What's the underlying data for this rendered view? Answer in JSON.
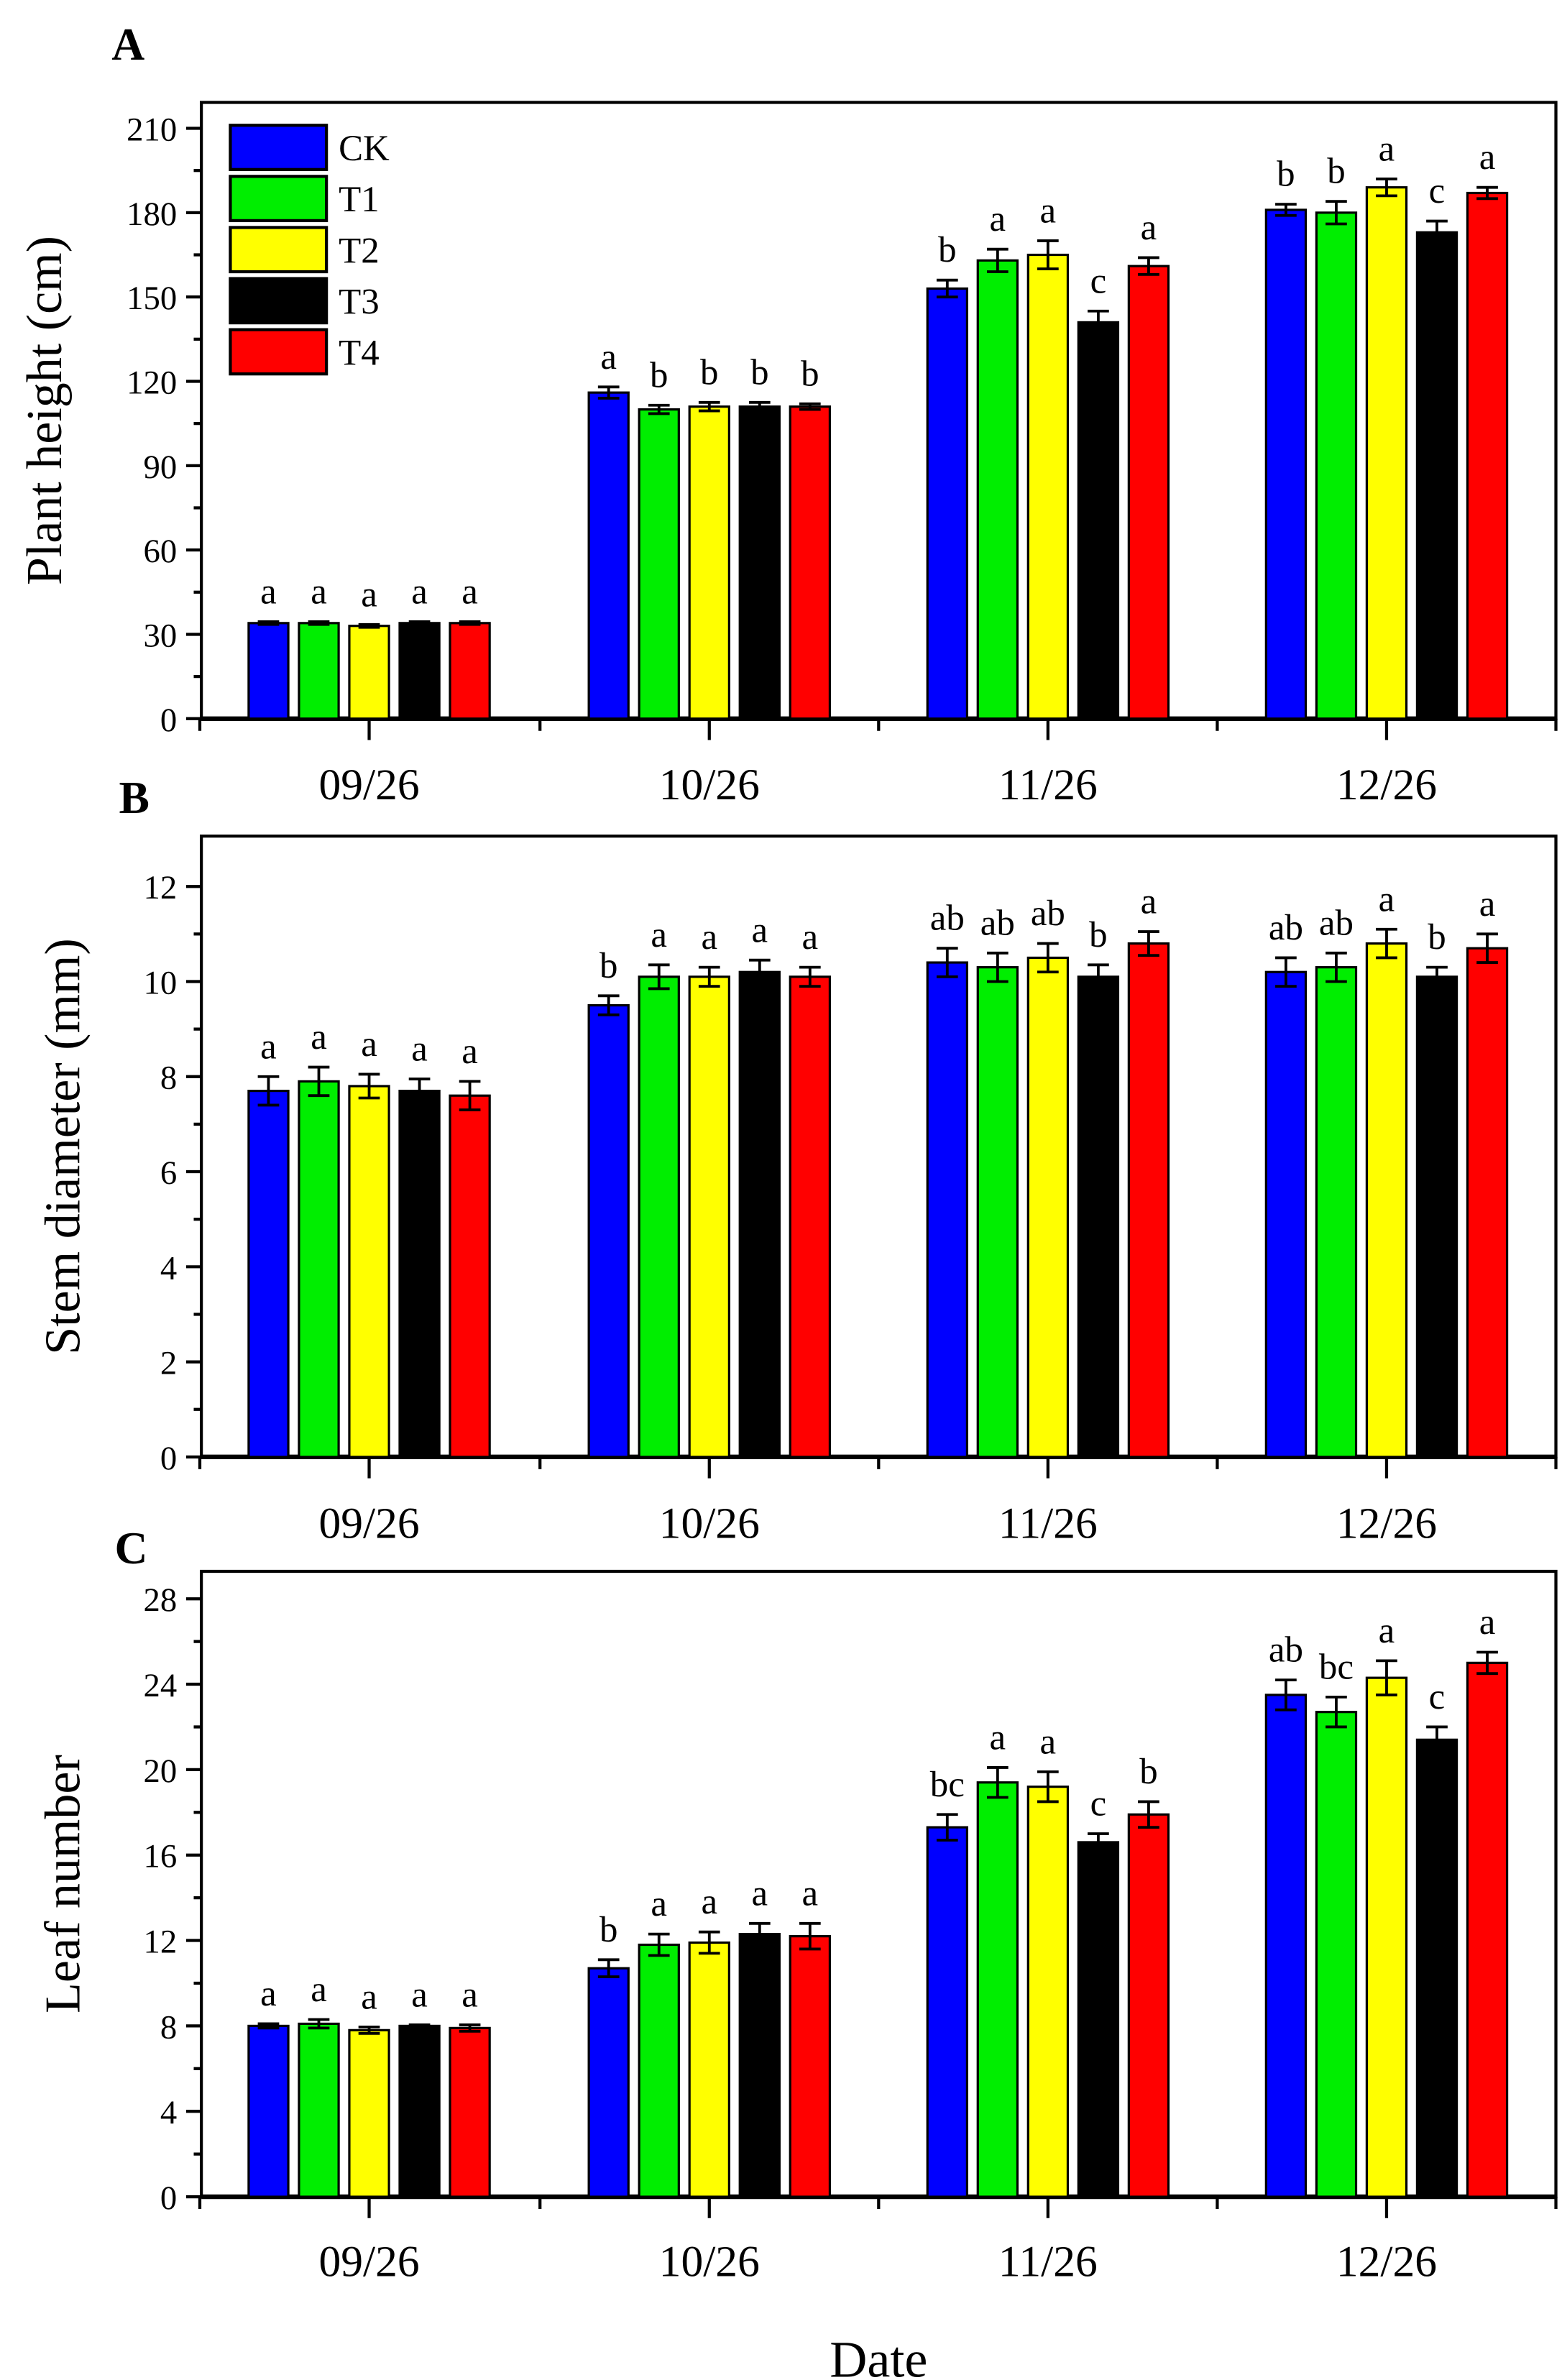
{
  "chart_data": [
    {
      "type": "bar",
      "panel_label": "A",
      "title": "",
      "xlabel": "",
      "ylabel": "Plant height (cm)",
      "categories": [
        "09/26",
        "10/26",
        "11/26",
        "12/26"
      ],
      "ylim": [
        0,
        210
      ],
      "yticks": [
        0,
        30,
        60,
        90,
        120,
        150,
        180,
        210
      ],
      "minor_step": 15,
      "legend": {
        "placement": "top-left",
        "entries": [
          "CK",
          "T1",
          "T2",
          "T3",
          "T4"
        ]
      },
      "series": [
        {
          "name": "CK",
          "color": "#0000ff",
          "values": [
            34,
            116,
            153,
            181
          ],
          "errors": [
            0.5,
            2,
            3,
            2
          ],
          "letters": [
            "a",
            "a",
            "b",
            "b"
          ]
        },
        {
          "name": "T1",
          "color": "#00ee00",
          "values": [
            34,
            110,
            163,
            180
          ],
          "errors": [
            0.5,
            1.5,
            4,
            4
          ],
          "letters": [
            "a",
            "b",
            "a",
            "b"
          ]
        },
        {
          "name": "T2",
          "color": "#ffff00",
          "values": [
            33,
            111,
            165,
            189
          ],
          "errors": [
            0.5,
            1.5,
            5,
            3
          ],
          "letters": [
            "a",
            "b",
            "a",
            "a"
          ]
        },
        {
          "name": "T3",
          "color": "#000000",
          "values": [
            34,
            111,
            141,
            173
          ],
          "errors": [
            0.5,
            1.5,
            4,
            4
          ],
          "letters": [
            "a",
            "b",
            "c",
            "c"
          ]
        },
        {
          "name": "T4",
          "color": "#ff0000",
          "values": [
            34,
            111,
            161,
            187
          ],
          "errors": [
            0.5,
            1,
            3,
            2
          ],
          "letters": [
            "a",
            "b",
            "a",
            "a"
          ]
        }
      ]
    },
    {
      "type": "bar",
      "panel_label": "B",
      "title": "",
      "xlabel": "",
      "ylabel": "Stem diameter (mm)",
      "categories": [
        "09/26",
        "10/26",
        "11/26",
        "12/26"
      ],
      "ylim": [
        0,
        13
      ],
      "yticks": [
        0,
        2,
        4,
        6,
        8,
        10,
        12
      ],
      "minor_step": 1,
      "series": [
        {
          "name": "CK",
          "color": "#0000ff",
          "values": [
            7.7,
            9.5,
            10.4,
            10.2
          ],
          "errors": [
            0.3,
            0.2,
            0.3,
            0.3
          ],
          "letters": [
            "a",
            "b",
            "ab",
            "ab"
          ]
        },
        {
          "name": "T1",
          "color": "#00ee00",
          "values": [
            7.9,
            10.1,
            10.3,
            10.3
          ],
          "errors": [
            0.3,
            0.25,
            0.3,
            0.3
          ],
          "letters": [
            "a",
            "a",
            "ab",
            "ab"
          ]
        },
        {
          "name": "T2",
          "color": "#ffff00",
          "values": [
            7.8,
            10.1,
            10.5,
            10.8
          ],
          "errors": [
            0.25,
            0.2,
            0.3,
            0.3
          ],
          "letters": [
            "a",
            "a",
            "ab",
            "a"
          ]
        },
        {
          "name": "T3",
          "color": "#000000",
          "values": [
            7.7,
            10.2,
            10.1,
            10.1
          ],
          "errors": [
            0.25,
            0.25,
            0.25,
            0.2
          ],
          "letters": [
            "a",
            "a",
            "b",
            "b"
          ]
        },
        {
          "name": "T4",
          "color": "#ff0000",
          "values": [
            7.6,
            10.1,
            10.8,
            10.7
          ],
          "errors": [
            0.3,
            0.2,
            0.25,
            0.3
          ],
          "letters": [
            "a",
            "a",
            "a",
            "a"
          ]
        }
      ]
    },
    {
      "type": "bar",
      "panel_label": "C",
      "title": "",
      "xlabel": "Date",
      "ylabel": "Leaf number",
      "categories": [
        "09/26",
        "10/26",
        "11/26",
        "12/26"
      ],
      "ylim": [
        0,
        29
      ],
      "yticks": [
        0,
        4,
        8,
        12,
        16,
        20,
        24,
        28
      ],
      "minor_step": 2,
      "series": [
        {
          "name": "CK",
          "color": "#0000ff",
          "values": [
            8.0,
            10.7,
            17.3,
            23.5
          ],
          "errors": [
            0.1,
            0.4,
            0.6,
            0.7
          ],
          "letters": [
            "a",
            "b",
            "bc",
            "ab"
          ]
        },
        {
          "name": "T1",
          "color": "#00ee00",
          "values": [
            8.1,
            11.8,
            19.4,
            22.7
          ],
          "errors": [
            0.2,
            0.5,
            0.7,
            0.7
          ],
          "letters": [
            "a",
            "a",
            "a",
            "bc"
          ]
        },
        {
          "name": "T2",
          "color": "#ffff00",
          "values": [
            7.8,
            11.9,
            19.2,
            24.3
          ],
          "errors": [
            0.15,
            0.5,
            0.7,
            0.8
          ],
          "letters": [
            "a",
            "a",
            "a",
            "a"
          ]
        },
        {
          "name": "T3",
          "color": "#000000",
          "values": [
            8.0,
            12.3,
            16.6,
            21.4
          ],
          "errors": [
            0.05,
            0.5,
            0.4,
            0.6
          ],
          "letters": [
            "a",
            "a",
            "c",
            "c"
          ]
        },
        {
          "name": "T4",
          "color": "#ff0000",
          "values": [
            7.9,
            12.2,
            17.9,
            25.0
          ],
          "errors": [
            0.15,
            0.6,
            0.6,
            0.5
          ],
          "letters": [
            "a",
            "a",
            "b",
            "a"
          ]
        }
      ]
    }
  ]
}
